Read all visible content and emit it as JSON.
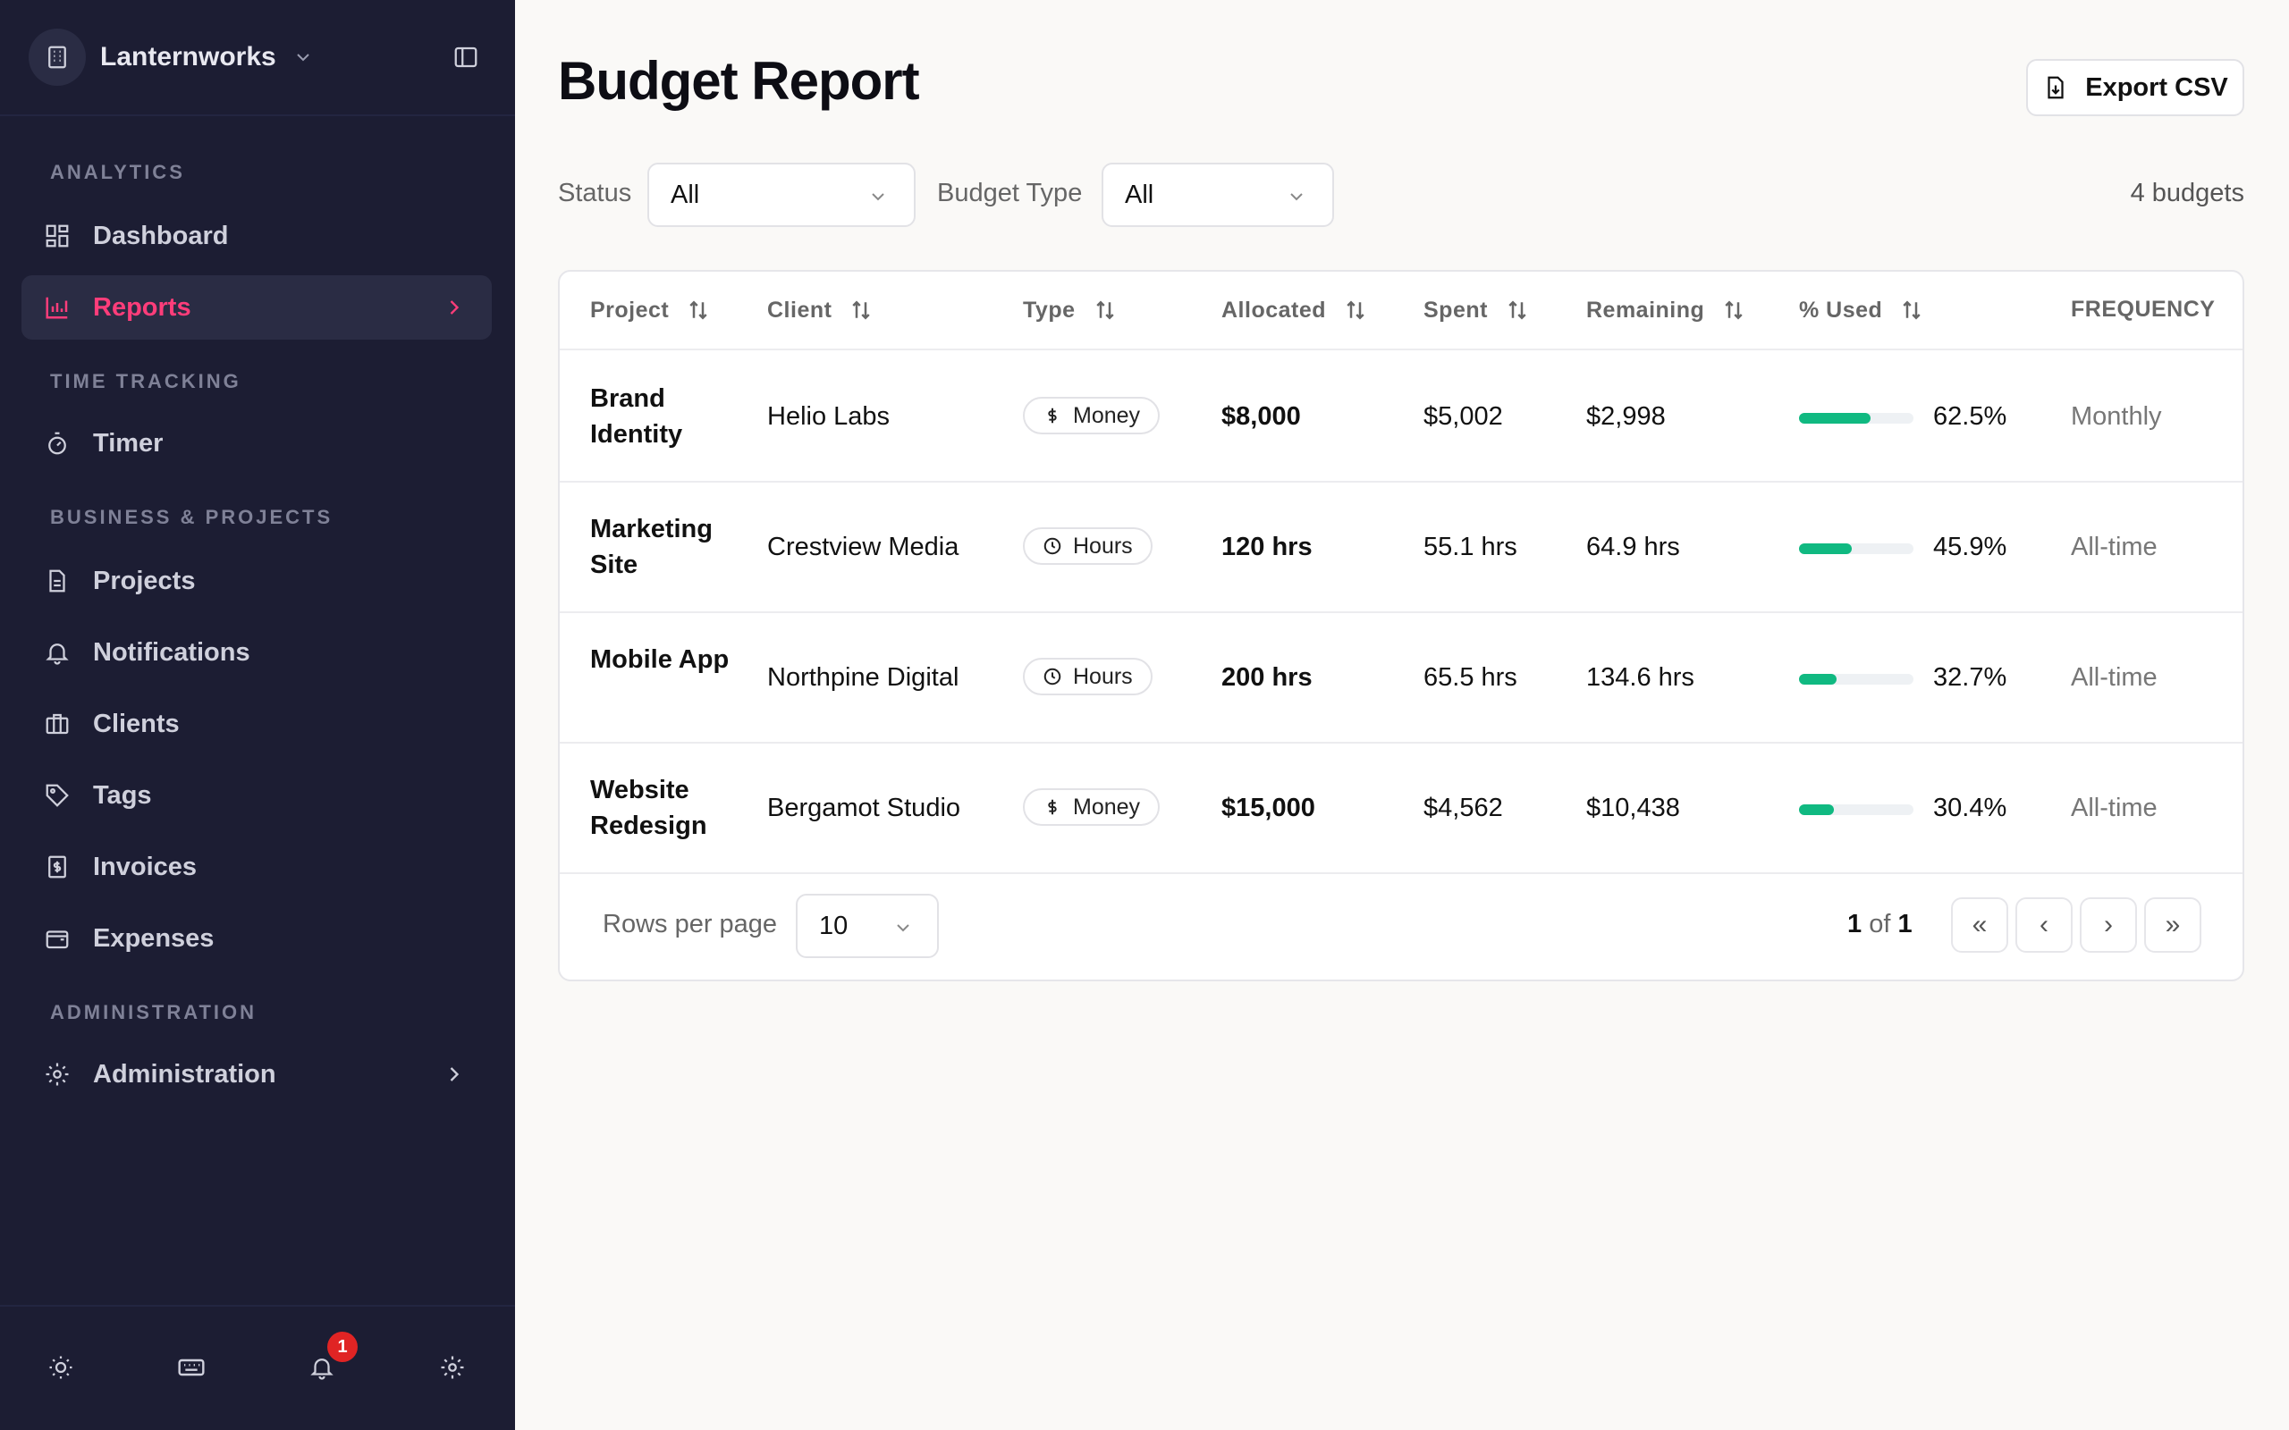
{
  "sidebar": {
    "workspace_name": "Lanternworks",
    "sections": {
      "analytics": "ANALYTICS",
      "time_tracking": "TIME TRACKING",
      "business": "BUSINESS & PROJECTS",
      "administration": "ADMINISTRATION"
    },
    "items": {
      "dashboard": "Dashboard",
      "reports": "Reports",
      "timer": "Timer",
      "projects": "Projects",
      "notifications": "Notifications",
      "clients": "Clients",
      "tags": "Tags",
      "invoices": "Invoices",
      "expenses": "Expenses",
      "administration": "Administration"
    },
    "notification_badge": "1",
    "accent_color": "#ff3d7a"
  },
  "page": {
    "title": "Budget Report",
    "export_label": "Export CSV"
  },
  "filters": {
    "status_label": "Status",
    "status_value": "All",
    "budget_type_label": "Budget Type",
    "budget_type_value": "All",
    "count": "4 budgets"
  },
  "table": {
    "headers": {
      "project": "Project",
      "client": "Client",
      "type": "Type",
      "allocated": "Allocated",
      "spent": "Spent",
      "remaining": "Remaining",
      "used": "% Used",
      "frequency": "FREQUENCY"
    },
    "rows": [
      {
        "project": "Brand Identity",
        "client": "Helio Labs",
        "type": "Money",
        "type_icon": "dollar-icon",
        "allocated": "$8,000",
        "spent": "$5,002",
        "remaining": "$2,998",
        "used": "62.5%",
        "used_fraction": 0.625,
        "frequency": "Monthly"
      },
      {
        "project": "Marketing Site",
        "client": "Crestview Media",
        "type": "Hours",
        "type_icon": "clock-icon",
        "allocated": "120 hrs",
        "spent": "55.1 hrs",
        "remaining": "64.9 hrs",
        "used": "45.9%",
        "used_fraction": 0.459,
        "frequency": "All-time"
      },
      {
        "project": "Mobile App",
        "client": "Northpine Digital",
        "type": "Hours",
        "type_icon": "clock-icon",
        "allocated": "200 hrs",
        "spent": "65.5 hrs",
        "remaining": "134.6 hrs",
        "used": "32.7%",
        "used_fraction": 0.327,
        "frequency": "All-time"
      },
      {
        "project": "Website Redesign",
        "client": "Bergamot Studio",
        "type": "Money",
        "type_icon": "dollar-icon",
        "allocated": "$15,000",
        "spent": "$4,562",
        "remaining": "$10,438",
        "used": "30.4%",
        "used_fraction": 0.304,
        "frequency": "All-time"
      }
    ],
    "progress_color": "#10b981"
  },
  "pagination": {
    "rows_per_page_label": "Rows per page",
    "rows_per_page_value": "10",
    "current_page": "1",
    "of_label": "of",
    "total_pages": "1",
    "first": "«",
    "prev": "‹",
    "next": "›",
    "last": "»"
  }
}
